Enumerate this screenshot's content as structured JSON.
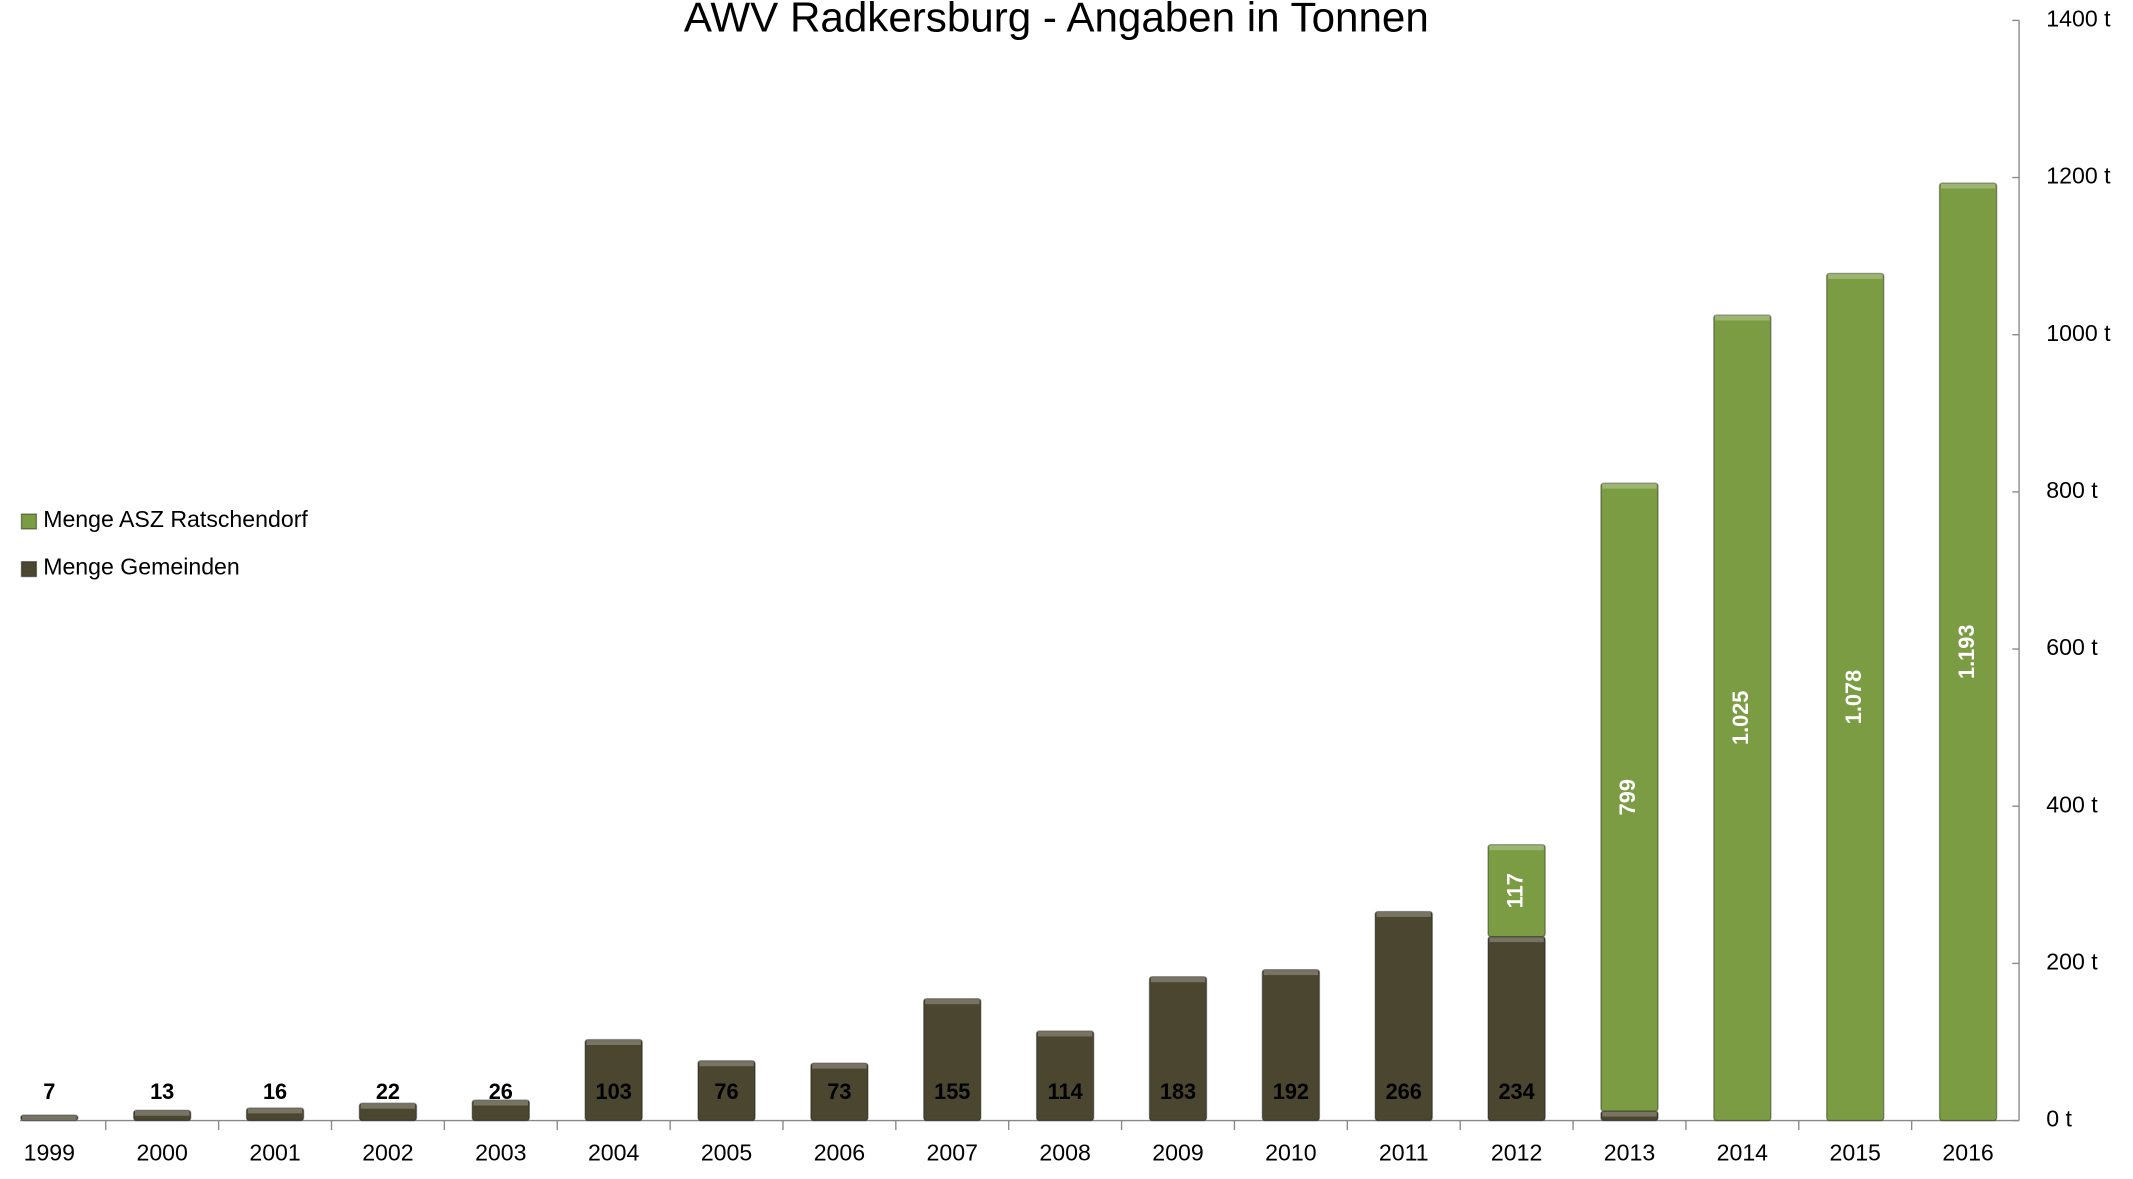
{
  "chart_data": {
    "type": "bar",
    "stacked": true,
    "title": "AWV Radkersburg - Angaben in Tonnen",
    "categories": [
      "1999",
      "2000",
      "2001",
      "2002",
      "2003",
      "2004",
      "2005",
      "2006",
      "2007",
      "2008",
      "2009",
      "2010",
      "2011",
      "2012",
      "2013",
      "2014",
      "2015",
      "2016"
    ],
    "series": [
      {
        "name": "Menge Gemeinden",
        "color": "#4b4630",
        "values": [
          7,
          13,
          16,
          22,
          26,
          103,
          76,
          73,
          155,
          114,
          183,
          192,
          266,
          234,
          12,
          null,
          null,
          null
        ]
      },
      {
        "name": "Menge ASZ Ratschendorf",
        "color": "#7b9c42",
        "values": [
          null,
          null,
          null,
          null,
          null,
          null,
          null,
          null,
          null,
          null,
          null,
          null,
          null,
          117,
          799,
          1025,
          1078,
          1193
        ],
        "value_labels": [
          null,
          null,
          null,
          null,
          null,
          null,
          null,
          null,
          null,
          null,
          null,
          null,
          null,
          "117",
          "799",
          "1.025",
          "1.078",
          "1.193"
        ]
      }
    ],
    "ylim": [
      0,
      1400
    ],
    "yticks": [
      {
        "value": 0,
        "label": "0 t"
      },
      {
        "value": 200,
        "label": "200 t"
      },
      {
        "value": 400,
        "label": "400 t"
      },
      {
        "value": 600,
        "label": "600 t"
      },
      {
        "value": 800,
        "label": "800 t"
      },
      {
        "value": 1000,
        "label": "1000 t"
      },
      {
        "value": 1200,
        "label": "1200 t"
      },
      {
        "value": 1400,
        "label": "1400 t"
      }
    ],
    "y_axis_side": "right",
    "legend": "left",
    "grid": false
  }
}
